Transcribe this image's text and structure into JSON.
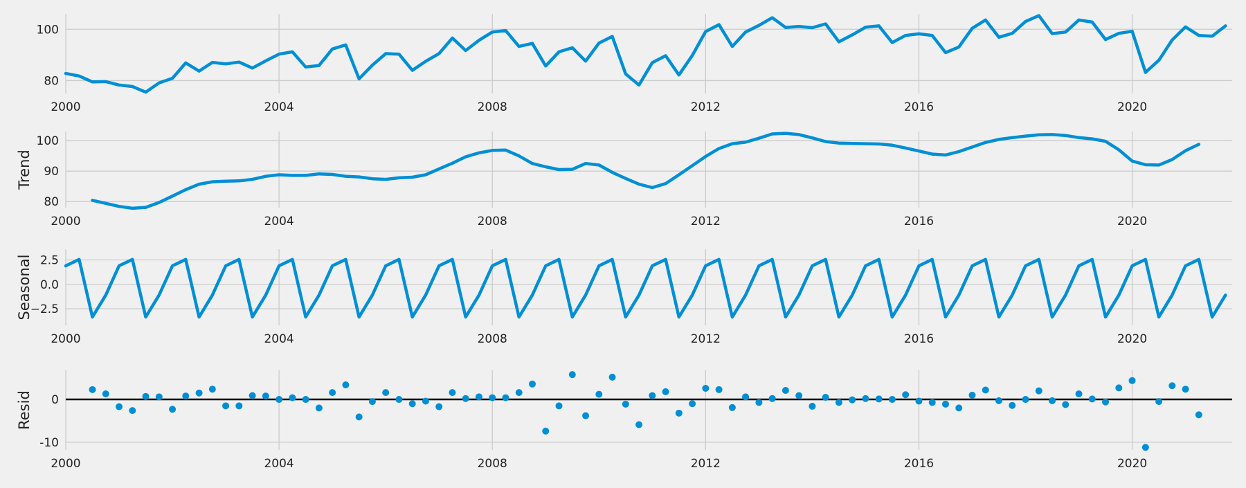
{
  "style": {
    "background": "#f0f0f0",
    "grid": "#cbcbcb",
    "line_color": "#008fd5",
    "zero_line": "#000000"
  },
  "chart_data": [
    {
      "id": "observed",
      "type": "line",
      "ylabel": "",
      "ylim": [
        75,
        106
      ],
      "yticks": [
        80,
        100
      ],
      "xlim": [
        2000.0,
        2021.875
      ],
      "xticks": [
        2000,
        2004,
        2008,
        2012,
        2016,
        2020
      ],
      "x_start": 2000.0,
      "x_step": 0.25,
      "values": [
        82.8,
        81.8,
        79.5,
        79.6,
        78.3,
        77.7,
        75.5,
        79.1,
        80.9,
        86.9,
        83.7,
        87.1,
        86.5,
        87.2,
        84.9,
        87.7,
        90.3,
        91.2,
        85.3,
        85.9,
        92.3,
        93.9,
        80.7,
        86.0,
        90.5,
        90.3,
        84.0,
        87.5,
        90.5,
        96.6,
        91.7,
        95.7,
        98.9,
        99.5,
        93.3,
        94.5,
        85.7,
        91.2,
        92.8,
        87.6,
        94.6,
        97.2,
        82.6,
        78.3,
        87.0,
        89.7,
        82.2,
        89.8,
        99.1,
        101.8,
        93.3,
        98.9,
        101.5,
        104.5,
        100.7,
        101.1,
        100.6,
        102.1,
        95.1,
        97.8,
        100.8,
        101.3,
        94.8,
        97.6,
        98.2,
        97.6,
        90.9,
        93.1,
        100.4,
        103.6,
        96.9,
        98.4,
        103.0,
        105.3,
        98.3,
        98.9,
        103.6,
        102.8,
        96.0,
        98.4,
        99.2,
        83.2,
        87.9,
        95.8,
        100.9,
        97.6,
        97.3,
        101.3
      ]
    },
    {
      "id": "trend",
      "type": "line",
      "ylabel": "Trend",
      "ylim": [
        78,
        103
      ],
      "yticks": [
        80,
        90,
        100
      ],
      "xlim": [
        2000.0,
        2021.875
      ],
      "xticks": [
        2000,
        2004,
        2008,
        2012,
        2016,
        2020
      ],
      "x_start": 2000.5,
      "x_step": 0.25,
      "values": [
        80.4,
        79.4,
        78.4,
        77.8,
        78.1,
        79.7,
        81.8,
        83.9,
        85.7,
        86.5,
        86.7,
        86.8,
        87.3,
        88.3,
        88.8,
        88.6,
        88.6,
        89.1,
        88.9,
        88.3,
        88.1,
        87.5,
        87.3,
        87.8,
        88.0,
        88.8,
        90.7,
        92.6,
        94.7,
        96.0,
        96.8,
        96.9,
        95.0,
        92.5,
        91.4,
        90.5,
        90.6,
        92.5,
        92.0,
        89.6,
        87.6,
        85.7,
        84.6,
        85.9,
        88.8,
        91.8,
        94.8,
        97.4,
        99.0,
        99.5,
        100.8,
        102.2,
        102.4,
        102.0,
        100.9,
        99.7,
        99.2,
        99.1,
        99.0,
        98.9,
        98.5,
        97.6,
        96.6,
        95.6,
        95.3,
        96.4,
        97.9,
        99.4,
        100.4,
        101.0,
        101.5,
        101.9,
        102.0,
        101.7,
        101.0,
        100.6,
        99.8,
        97.0,
        93.3,
        92.1,
        92.0,
        93.8,
        96.7,
        98.8
      ]
    },
    {
      "id": "seasonal",
      "type": "line",
      "ylabel": "Seasonal",
      "ylim": [
        -4.2,
        3.6
      ],
      "yticks": [
        2.5,
        0.0,
        -2.5
      ],
      "ytick_labels": [
        "2.5",
        "0.0",
        "−2.5"
      ],
      "xlim": [
        2000.0,
        2021.875
      ],
      "xticks": [
        2000,
        2004,
        2008,
        2012,
        2016,
        2020
      ],
      "x_start": 2000.0,
      "x_step": 0.25,
      "pattern": [
        1.9,
        2.55,
        -3.35,
        -1.1
      ],
      "count": 88
    },
    {
      "id": "resid",
      "type": "scatter",
      "ylabel": "Resid",
      "ylim": [
        -11.8,
        6.8
      ],
      "yticks": [
        0,
        -10
      ],
      "hline": 0,
      "xlim": [
        2000.0,
        2021.875
      ],
      "xticks": [
        2000,
        2004,
        2008,
        2012,
        2016,
        2020
      ],
      "x_start": 2000.5,
      "x_step": 0.25,
      "values": [
        2.3,
        1.3,
        -1.7,
        -2.6,
        0.7,
        0.6,
        -2.3,
        0.8,
        1.5,
        2.4,
        -1.5,
        -1.5,
        0.9,
        0.8,
        0.0,
        0.4,
        0.0,
        -2.0,
        1.6,
        3.4,
        -4.1,
        -0.5,
        1.6,
        0.0,
        -1.0,
        -0.4,
        -1.7,
        1.6,
        0.2,
        0.6,
        0.4,
        0.4,
        1.6,
        3.6,
        -7.4,
        -1.5,
        5.8,
        -3.8,
        1.2,
        5.2,
        -1.1,
        -5.9,
        0.9,
        1.8,
        -3.2,
        -1.0,
        2.6,
        2.3,
        -1.9,
        0.6,
        -0.7,
        0.2,
        2.1,
        0.9,
        -1.6,
        0.5,
        -0.7,
        -0.1,
        0.2,
        0.1,
        0.0,
        1.1,
        -0.4,
        -0.7,
        -1.1,
        -2.0,
        1.0,
        2.2,
        -0.3,
        -1.4,
        0.0,
        2.0,
        -0.3,
        -1.2,
        1.3,
        0.1,
        -0.6,
        2.7,
        4.4,
        -11.2,
        -0.5,
        3.2,
        2.4,
        -3.6
      ]
    }
  ]
}
